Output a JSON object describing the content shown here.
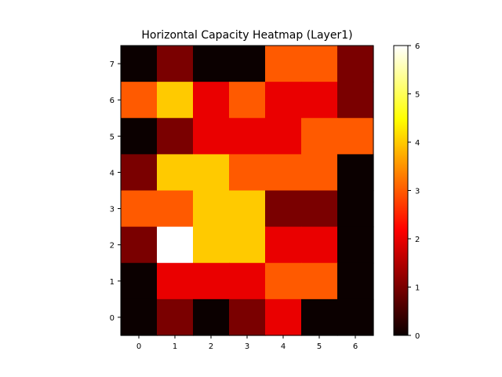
{
  "chart_data": {
    "type": "heatmap",
    "title": "Horizontal Capacity Heatmap (Layer1)",
    "xlabel": "",
    "ylabel": "",
    "x_ticks": [
      "0",
      "1",
      "2",
      "3",
      "4",
      "5",
      "6"
    ],
    "y_ticks": [
      "0",
      "1",
      "2",
      "3",
      "4",
      "5",
      "6",
      "7"
    ],
    "colormap": "hot",
    "vmin": 0,
    "vmax": 6,
    "colorbar_ticks": [
      "0",
      "1",
      "2",
      "3",
      "4",
      "5",
      "6"
    ],
    "rows_top_to_bottom_y": [
      7,
      6,
      5,
      4,
      3,
      2,
      1,
      0
    ],
    "values": [
      [
        0,
        1,
        0,
        0,
        3,
        3,
        1
      ],
      [
        3,
        4,
        2,
        3,
        2,
        2,
        1
      ],
      [
        0,
        1,
        2,
        2,
        2,
        3,
        3
      ],
      [
        1,
        4,
        4,
        3,
        3,
        3,
        0
      ],
      [
        3,
        3,
        4,
        4,
        1,
        1,
        0
      ],
      [
        1,
        6,
        4,
        4,
        2,
        2,
        0
      ],
      [
        0,
        2,
        2,
        2,
        3,
        3,
        0
      ],
      [
        0,
        1,
        0,
        1,
        2,
        0,
        0
      ]
    ]
  }
}
